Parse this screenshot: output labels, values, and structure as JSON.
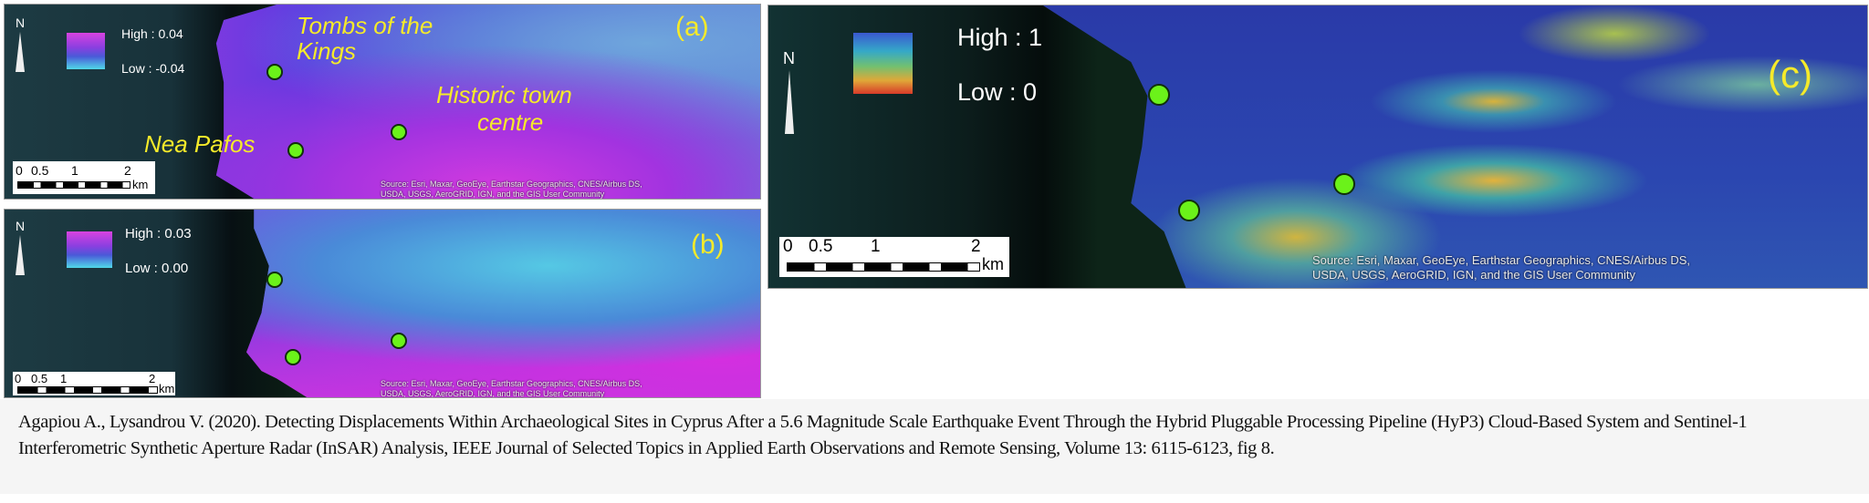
{
  "panels": {
    "a": {
      "label": "(a)",
      "legend_high": "High : 0.04",
      "legend_low": "Low : -0.04",
      "places": {
        "tombs_1": "Tombs of the",
        "tombs_2": "Kings",
        "historic_1": "Historic town",
        "historic_2": "centre",
        "nea_pafos": "Nea Pafos"
      }
    },
    "b": {
      "label": "(b)",
      "legend_high": "High : 0.03",
      "legend_low": "Low : 0.00"
    },
    "c": {
      "label": "(c)",
      "legend_high": "High : 1",
      "legend_low": "Low : 0"
    }
  },
  "north_label": "N",
  "scale": {
    "ticks": [
      "0",
      "0.5",
      "1",
      "2"
    ],
    "unit": "km"
  },
  "source_line1": "Source: Esri, Maxar, GeoEye, Earthstar Geographics, CNES/Airbus DS,",
  "source_line2": "USDA, USGS, AeroGRID, IGN, and the GIS User Community",
  "caption": "Agapiou A., Lysandrou V. (2020). Detecting Displacements Within Archaeological Sites in Cyprus After a 5.6 Magnitude Scale Earthquake Event Through the Hybrid Pluggable Processing Pipeline (HyP3) Cloud-Based System and Sentinel-1 Interferometric Synthetic Aperture Radar (InSAR) Analysis, IEEE Journal of Selected Topics in Applied Earth Observations and Remote Sensing, Volume 13: 6115-6123, fig 8."
}
